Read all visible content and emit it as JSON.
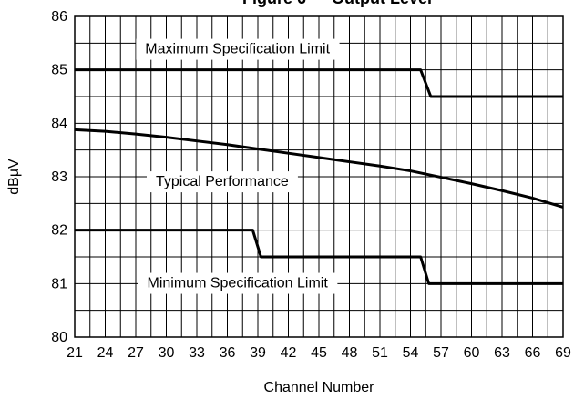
{
  "chart_data": {
    "type": "line",
    "title": "Figure 6 — Output Level",
    "xlabel": "Channel Number",
    "ylabel": "dBµV",
    "xlim": [
      21,
      69
    ],
    "ylim": [
      80,
      86
    ],
    "x_ticks": [
      21,
      24,
      27,
      30,
      33,
      36,
      39,
      42,
      45,
      48,
      51,
      54,
      57,
      60,
      63,
      66,
      69
    ],
    "y_ticks": [
      80,
      81,
      82,
      83,
      84,
      85,
      86
    ],
    "grid": true,
    "legend": "none",
    "annotations": [
      {
        "text": "Maximum Specification Limit",
        "x": 37,
        "y": 85.38
      },
      {
        "text": "Typical Performance",
        "x": 35.5,
        "y": 82.9
      },
      {
        "text": "Minimum Specification Limit",
        "x": 37,
        "y": 81.0
      }
    ],
    "series": [
      {
        "x": [
          21,
          55,
          56,
          69
        ],
        "y": [
          85.0,
          85.0,
          84.5,
          84.5
        ]
      },
      {
        "x": [
          21,
          24,
          27,
          30,
          33,
          36,
          39,
          42,
          45,
          48,
          51,
          54,
          57,
          60,
          63,
          66,
          69
        ],
        "y": [
          83.88,
          83.85,
          83.8,
          83.74,
          83.67,
          83.6,
          83.52,
          83.44,
          83.36,
          83.28,
          83.2,
          83.11,
          82.99,
          82.87,
          82.74,
          82.6,
          82.43
        ]
      },
      {
        "x": [
          21,
          38.5,
          39.3,
          55,
          55.8,
          69
        ],
        "y": [
          82.0,
          82.0,
          81.5,
          81.5,
          81.0,
          81.0
        ]
      }
    ]
  }
}
